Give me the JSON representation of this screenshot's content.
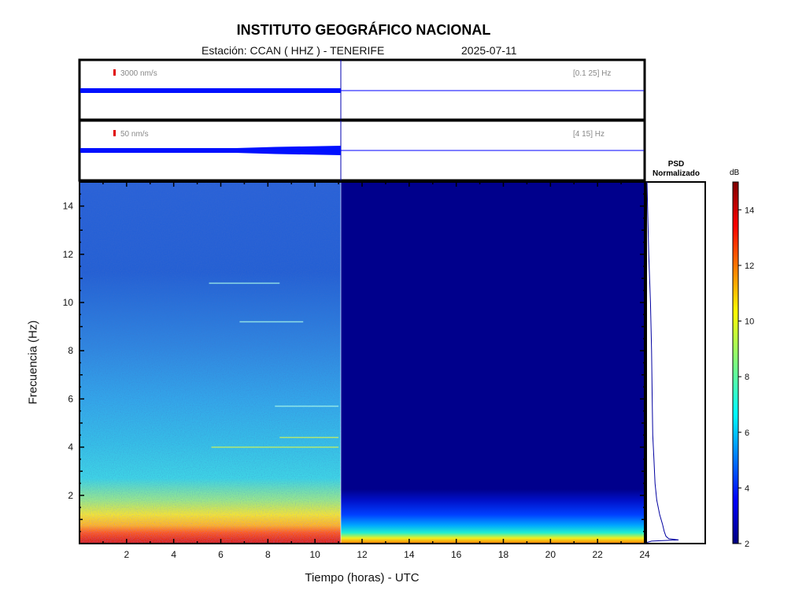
{
  "header": {
    "title": "INSTITUTO GEOGRÁFICO NACIONAL",
    "station_label": "Estación:  CCAN ( HHZ ) - TENERIFE",
    "date": "2025-07-11"
  },
  "chart_data": [
    {
      "type": "line",
      "panel": "waveform-broadband",
      "scale_label": "3000 nm/s",
      "band_label": "[0.1 25] Hz",
      "x_range_hours": [
        0,
        24
      ],
      "data_end_hour": 11.05,
      "series_color": "#0000ff"
    },
    {
      "type": "line",
      "panel": "waveform-filtered",
      "scale_label": "50 nm/s",
      "band_label": "[4 15] Hz",
      "x_range_hours": [
        0,
        24
      ],
      "data_end_hour": 11.05,
      "series_color": "#0000ff"
    },
    {
      "type": "heatmap",
      "panel": "spectrogram",
      "xlabel": "Tiempo (horas) - UTC",
      "ylabel": "Frecuencia  (Hz)",
      "xlim": [
        0,
        24
      ],
      "ylim": [
        0,
        15
      ],
      "xticks": [
        2,
        4,
        6,
        8,
        10,
        12,
        14,
        16,
        18,
        20,
        22,
        24
      ],
      "yticks": [
        2,
        4,
        6,
        8,
        10,
        12,
        14
      ],
      "data_end_hour": 11.05,
      "horizontal_lines_hz": [
        {
          "start": 5.6,
          "end": 11,
          "hz": 4.0
        },
        {
          "start": 8.3,
          "end": 11,
          "hz": 5.7
        },
        {
          "start": 8.5,
          "end": 11,
          "hz": 4.4
        },
        {
          "start": 5.5,
          "end": 8.5,
          "hz": 10.8
        },
        {
          "start": 6.8,
          "end": 9.5,
          "hz": 9.2
        }
      ]
    },
    {
      "type": "line",
      "panel": "psd",
      "title": "PSD\nNormalizado",
      "psd_curve": [
        [
          0.05,
          0.0
        ],
        [
          0.1,
          0.08
        ],
        [
          0.15,
          0.55
        ],
        [
          0.2,
          0.38
        ],
        [
          0.3,
          0.33
        ],
        [
          0.5,
          0.3
        ],
        [
          0.8,
          0.27
        ],
        [
          1.2,
          0.22
        ],
        [
          1.8,
          0.17
        ],
        [
          2.5,
          0.14
        ],
        [
          3.5,
          0.12
        ],
        [
          4.5,
          0.1
        ],
        [
          6,
          0.09
        ],
        [
          8,
          0.08
        ],
        [
          10,
          0.06
        ],
        [
          12,
          0.03
        ],
        [
          14,
          0.01
        ],
        [
          15,
          0.0
        ]
      ]
    },
    {
      "type": "heatmap",
      "panel": "colorbar",
      "unit": "dB",
      "range": [
        2,
        15
      ],
      "ticks": [
        2,
        4,
        6,
        8,
        10,
        12,
        14
      ]
    }
  ]
}
